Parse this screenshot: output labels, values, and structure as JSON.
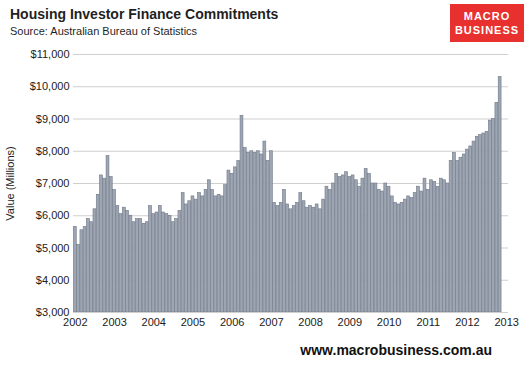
{
  "chart_data": {
    "type": "bar",
    "title": "Housing Investor Finance Commitments",
    "subtitle": "Source: Australian Bureau of Statistics",
    "logo": [
      "MACRO",
      "BUSINESS"
    ],
    "footer": "www.macrobusiness.com.au",
    "y_label": "Value (Millions)",
    "color": "#9ea6b3",
    "grid": true,
    "ylim": [
      3000,
      11000
    ],
    "yticks": [
      {
        "value": 3000,
        "label": "$3,000"
      },
      {
        "value": 4000,
        "label": "$4,000"
      },
      {
        "value": 5000,
        "label": "$5,000"
      },
      {
        "value": 6000,
        "label": "$6,000"
      },
      {
        "value": 7000,
        "label": "$7,000"
      },
      {
        "value": 8000,
        "label": "$8,000"
      },
      {
        "value": 9000,
        "label": "$9,000"
      },
      {
        "value": 10000,
        "label": "$10,000"
      },
      {
        "value": 11000,
        "label": "$11,000"
      }
    ],
    "categories": [
      "2002",
      null,
      null,
      null,
      null,
      null,
      null,
      null,
      null,
      null,
      null,
      null,
      "2003",
      null,
      null,
      null,
      null,
      null,
      null,
      null,
      null,
      null,
      null,
      null,
      "2004",
      null,
      null,
      null,
      null,
      null,
      null,
      null,
      null,
      null,
      null,
      null,
      "2005",
      null,
      null,
      null,
      null,
      null,
      null,
      null,
      null,
      null,
      null,
      null,
      "2006",
      null,
      null,
      null,
      null,
      null,
      null,
      null,
      null,
      null,
      null,
      null,
      "2007",
      null,
      null,
      null,
      null,
      null,
      null,
      null,
      null,
      null,
      null,
      null,
      "2008",
      null,
      null,
      null,
      null,
      null,
      null,
      null,
      null,
      null,
      null,
      null,
      "2009",
      null,
      null,
      null,
      null,
      null,
      null,
      null,
      null,
      null,
      null,
      null,
      "2010",
      null,
      null,
      null,
      null,
      null,
      null,
      null,
      null,
      null,
      null,
      null,
      "2011",
      null,
      null,
      null,
      null,
      null,
      null,
      null,
      null,
      null,
      null,
      null,
      "2012",
      null,
      null,
      null,
      null,
      null,
      null,
      null,
      null,
      null,
      null,
      null,
      "2013"
    ],
    "values": [
      5650,
      5100,
      5550,
      5650,
      5900,
      5800,
      6200,
      6650,
      7250,
      7150,
      7850,
      7200,
      6800,
      6300,
      6050,
      6250,
      6150,
      6000,
      5800,
      5900,
      5900,
      5750,
      5800,
      6300,
      6050,
      6100,
      6300,
      6100,
      6050,
      6000,
      5800,
      5900,
      6150,
      6700,
      6350,
      6450,
      6600,
      6500,
      6700,
      6600,
      6800,
      7100,
      6800,
      6600,
      6650,
      6600,
      6950,
      7400,
      7300,
      7500,
      7700,
      9100,
      8100,
      7950,
      8000,
      7950,
      8000,
      7900,
      8300,
      7700,
      8000,
      6400,
      6300,
      6400,
      6800,
      6350,
      6200,
      6300,
      6400,
      6700,
      6450,
      6250,
      6300,
      6250,
      6350,
      6200,
      6500,
      6900,
      6800,
      7000,
      7300,
      7200,
      7250,
      7350,
      7200,
      7250,
      7100,
      6900,
      7150,
      7450,
      7300,
      7000,
      7000,
      6800,
      6750,
      7000,
      6900,
      6600,
      6400,
      6350,
      6400,
      6500,
      6600,
      6550,
      6700,
      6900,
      6750,
      7150,
      6800,
      7100,
      7050,
      6900,
      7150,
      7100,
      7000,
      7700,
      7950,
      7700,
      7800,
      7900,
      8050,
      8150,
      8300,
      8450,
      8500,
      8550,
      8600,
      8950,
      9000,
      9500,
      10300,
      null,
      null
    ]
  }
}
